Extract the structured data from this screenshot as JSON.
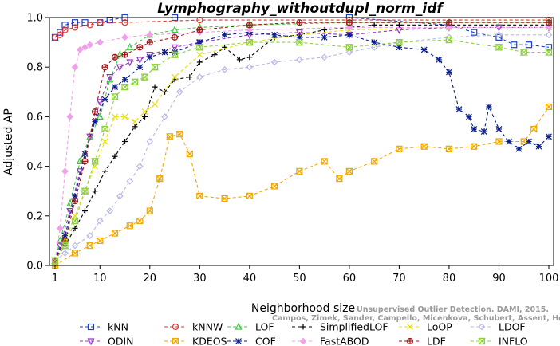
{
  "chart_data": {
    "type": "line",
    "title": "Lymphography_withoutdupl_norm_idf",
    "xlabel": "Neighborhood size",
    "ylabel": "Adjusted AP",
    "xlim": [
      1,
      100
    ],
    "ylim": [
      0,
      1
    ],
    "xticks": [
      1,
      10,
      20,
      30,
      40,
      50,
      60,
      70,
      80,
      90,
      100
    ],
    "yticks": [
      0.0,
      0.2,
      0.4,
      0.6,
      0.8,
      1.0
    ],
    "ytick_labels": [
      "0.0",
      "0.2",
      "0.4",
      "0.6",
      "0.8",
      "1.0"
    ],
    "grid": false,
    "legend_position": "bottom",
    "credit_line1": "Unsupervised Outlier Detection. DAMI, 2015.",
    "credit_line2": "Campos, Zimek, Sander, Campello, Micenkova, Schubert, Assent, Houle",
    "series": [
      {
        "name": "kNN",
        "color": "#1f3fbf",
        "marker": "square",
        "x": [
          1,
          2,
          3,
          5,
          7,
          10,
          12,
          15,
          25,
          60,
          80,
          85,
          90,
          93,
          96,
          100
        ],
        "y": [
          0.92,
          0.94,
          0.97,
          0.98,
          0.98,
          0.98,
          0.99,
          1.0,
          1.0,
          1.0,
          0.97,
          0.94,
          0.92,
          0.89,
          0.89,
          0.88
        ]
      },
      {
        "name": "kNNW",
        "color": "#e8312a",
        "marker": "circle",
        "x": [
          1,
          2,
          3,
          5,
          8,
          10,
          15,
          30,
          60,
          100
        ],
        "y": [
          0.92,
          0.93,
          0.95,
          0.96,
          0.97,
          0.98,
          0.98,
          0.99,
          0.99,
          0.99
        ]
      },
      {
        "name": "LOF",
        "color": "#3cc83c",
        "marker": "triangle-up",
        "x": [
          1,
          2,
          4,
          6,
          8,
          10,
          12,
          14,
          16,
          20,
          25,
          30,
          40,
          60,
          80,
          100
        ],
        "y": [
          0.02,
          0.1,
          0.25,
          0.42,
          0.52,
          0.6,
          0.75,
          0.85,
          0.88,
          0.93,
          0.95,
          0.96,
          0.97,
          0.98,
          0.98,
          0.98
        ]
      },
      {
        "name": "SimplifiedLOF",
        "color": "#000000",
        "marker": "plus",
        "x": [
          1,
          3,
          5,
          7,
          9,
          11,
          13,
          15,
          17,
          19,
          21,
          23,
          25,
          28,
          30,
          33,
          35,
          38,
          40,
          45,
          50,
          55,
          60,
          65,
          70,
          80,
          90,
          100
        ],
        "y": [
          0.02,
          0.08,
          0.15,
          0.22,
          0.3,
          0.38,
          0.44,
          0.5,
          0.56,
          0.6,
          0.72,
          0.7,
          0.75,
          0.76,
          0.82,
          0.85,
          0.88,
          0.83,
          0.84,
          0.92,
          0.93,
          0.95,
          0.96,
          0.97,
          0.97,
          0.97,
          0.97,
          0.97
        ]
      },
      {
        "name": "LoOP",
        "color": "#e8e000",
        "marker": "x",
        "x": [
          1,
          3,
          5,
          7,
          9,
          11,
          13,
          15,
          17,
          19,
          21,
          25,
          30,
          40,
          50,
          60,
          80,
          100
        ],
        "y": [
          0.02,
          0.1,
          0.2,
          0.3,
          0.4,
          0.5,
          0.6,
          0.6,
          0.58,
          0.62,
          0.65,
          0.76,
          0.85,
          0.9,
          0.93,
          0.95,
          0.96,
          0.96
        ]
      },
      {
        "name": "LDOF",
        "color": "#b8b8e8",
        "marker": "diamond",
        "x": [
          1,
          3,
          5,
          8,
          10,
          12,
          14,
          16,
          18,
          20,
          23,
          26,
          30,
          35,
          40,
          45,
          50,
          55,
          60,
          65,
          70,
          80,
          90,
          100
        ],
        "y": [
          0.02,
          0.05,
          0.08,
          0.12,
          0.18,
          0.22,
          0.28,
          0.34,
          0.4,
          0.5,
          0.6,
          0.7,
          0.76,
          0.79,
          0.8,
          0.82,
          0.83,
          0.84,
          0.86,
          0.88,
          0.9,
          0.92,
          0.93,
          0.93
        ]
      },
      {
        "name": "ODIN",
        "color": "#9a35c8",
        "marker": "triangle-down",
        "x": [
          1,
          2,
          4,
          6,
          8,
          10,
          12,
          14,
          16,
          18,
          20,
          25,
          30,
          40,
          50,
          60,
          70,
          80,
          90,
          100
        ],
        "y": [
          0.02,
          0.08,
          0.22,
          0.38,
          0.52,
          0.66,
          0.76,
          0.8,
          0.82,
          0.83,
          0.85,
          0.88,
          0.9,
          0.93,
          0.94,
          0.93,
          0.95,
          0.96,
          0.96,
          0.96
        ]
      },
      {
        "name": "KDEOS",
        "color": "#f0a800",
        "marker": "square-x",
        "x": [
          1,
          5,
          8,
          10,
          13,
          16,
          18,
          20,
          22,
          24,
          26,
          28,
          30,
          35,
          40,
          45,
          50,
          55,
          58,
          60,
          65,
          70,
          75,
          80,
          85,
          90,
          95,
          97,
          100
        ],
        "y": [
          0.0,
          0.05,
          0.08,
          0.1,
          0.13,
          0.16,
          0.18,
          0.22,
          0.35,
          0.52,
          0.53,
          0.45,
          0.28,
          0.27,
          0.28,
          0.32,
          0.38,
          0.42,
          0.35,
          0.38,
          0.42,
          0.47,
          0.48,
          0.47,
          0.48,
          0.5,
          0.5,
          0.55,
          0.64
        ]
      },
      {
        "name": "COF",
        "color": "#0a1e8c",
        "marker": "asterisk",
        "x": [
          1,
          3,
          5,
          7,
          9,
          11,
          13,
          15,
          18,
          20,
          23,
          25,
          30,
          35,
          40,
          45,
          50,
          55,
          60,
          65,
          70,
          75,
          78,
          80,
          82,
          84,
          85,
          87,
          88,
          90,
          92,
          94,
          96,
          98,
          100
        ],
        "y": [
          0.02,
          0.12,
          0.28,
          0.45,
          0.58,
          0.67,
          0.72,
          0.75,
          0.8,
          0.84,
          0.86,
          0.86,
          0.9,
          0.93,
          0.94,
          0.93,
          0.92,
          0.92,
          0.93,
          0.9,
          0.88,
          0.87,
          0.83,
          0.78,
          0.63,
          0.6,
          0.55,
          0.54,
          0.64,
          0.55,
          0.5,
          0.47,
          0.5,
          0.48,
          0.52
        ]
      },
      {
        "name": "FastABOD",
        "color": "#f0a0e8",
        "marker": "diamond-filled",
        "x": [
          1,
          2,
          3,
          4,
          5,
          6,
          7,
          8,
          10,
          15,
          20,
          30,
          40,
          60,
          80,
          100
        ],
        "y": [
          0.02,
          0.15,
          0.38,
          0.6,
          0.8,
          0.87,
          0.88,
          0.89,
          0.9,
          0.92,
          0.93,
          0.94,
          0.95,
          0.96,
          0.96,
          0.96
        ]
      },
      {
        "name": "LDF",
        "color": "#a01818",
        "marker": "circle-plus",
        "x": [
          1,
          3,
          5,
          7,
          9,
          11,
          13,
          15,
          18,
          20,
          25,
          30,
          40,
          50,
          60,
          80,
          100
        ],
        "y": [
          0.02,
          0.1,
          0.26,
          0.42,
          0.62,
          0.8,
          0.84,
          0.85,
          0.88,
          0.9,
          0.92,
          0.95,
          0.97,
          0.98,
          0.98,
          0.98,
          0.98
        ]
      },
      {
        "name": "INFLO",
        "color": "#90d040",
        "marker": "hourglass",
        "x": [
          1,
          3,
          5,
          7,
          9,
          11,
          13,
          15,
          17,
          19,
          21,
          25,
          30,
          40,
          50,
          60,
          70,
          80,
          90,
          95,
          100
        ],
        "y": [
          0.02,
          0.08,
          0.18,
          0.3,
          0.42,
          0.55,
          0.68,
          0.72,
          0.74,
          0.76,
          0.8,
          0.85,
          0.88,
          0.9,
          0.9,
          0.88,
          0.9,
          0.91,
          0.88,
          0.86,
          0.86
        ]
      }
    ]
  }
}
